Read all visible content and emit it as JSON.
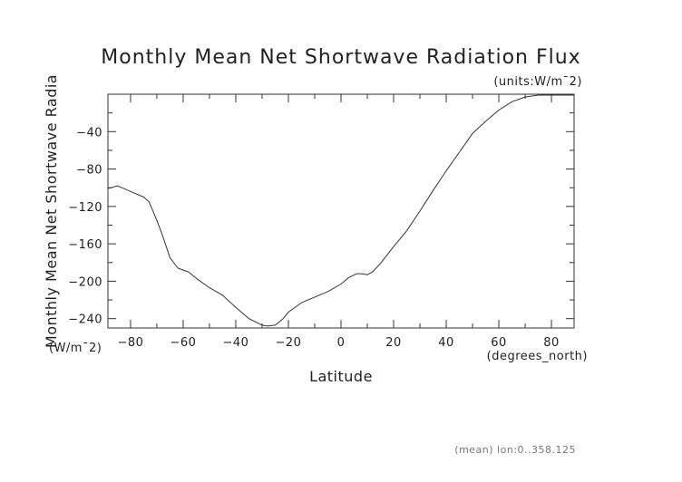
{
  "chart_data": {
    "type": "line",
    "title": "Monthly Mean Net Shortwave Radiation Flux",
    "units_label": "(units:W/m¯2)",
    "xlabel": "Latitude",
    "x_units_label": "(degrees_north)",
    "ylabel": "Monthly Mean Net Shortwave Radia",
    "y_units_label": "(W/m¯2)",
    "footer": "(mean) lon:0..358.125",
    "xlim": [
      -88.6,
      88.6
    ],
    "ylim": [
      -250,
      0
    ],
    "x_ticks": [
      -80,
      -60,
      -40,
      -20,
      0,
      20,
      40,
      60,
      80
    ],
    "x_tick_labels": [
      "−80",
      "−60",
      "−40",
      "−20",
      "0",
      "20",
      "40",
      "60",
      "80"
    ],
    "y_ticks": [
      -240,
      -200,
      -160,
      -120,
      -80,
      -40
    ],
    "y_tick_labels": [
      "−240",
      "−200",
      "−160",
      "−120",
      "−80",
      "−40"
    ],
    "grid": false,
    "series": [
      {
        "color": "#333333",
        "x": [
          -88.6,
          -85,
          -80,
          -75,
          -73,
          -70,
          -68,
          -65,
          -62,
          -58,
          -55,
          -50,
          -45,
          -40,
          -35,
          -30,
          -28,
          -25,
          -22,
          -20,
          -15,
          -10,
          -5,
          0,
          3,
          6,
          8,
          10,
          12,
          15,
          20,
          25,
          30,
          35,
          40,
          45,
          50,
          55,
          60,
          65,
          70,
          75,
          80,
          85,
          88.6
        ],
        "y": [
          -101,
          -98,
          -104,
          -110,
          -115,
          -135,
          -150,
          -175,
          -186,
          -190,
          -197,
          -207,
          -215,
          -228,
          -240,
          -247,
          -248,
          -247,
          -240,
          -233,
          -223,
          -217,
          -211,
          -203,
          -196,
          -192,
          -192,
          -193,
          -190,
          -181,
          -163,
          -146,
          -125,
          -103,
          -82,
          -62,
          -42,
          -29,
          -17,
          -8,
          -3,
          -1,
          -1,
          -1,
          -1
        ]
      }
    ]
  }
}
